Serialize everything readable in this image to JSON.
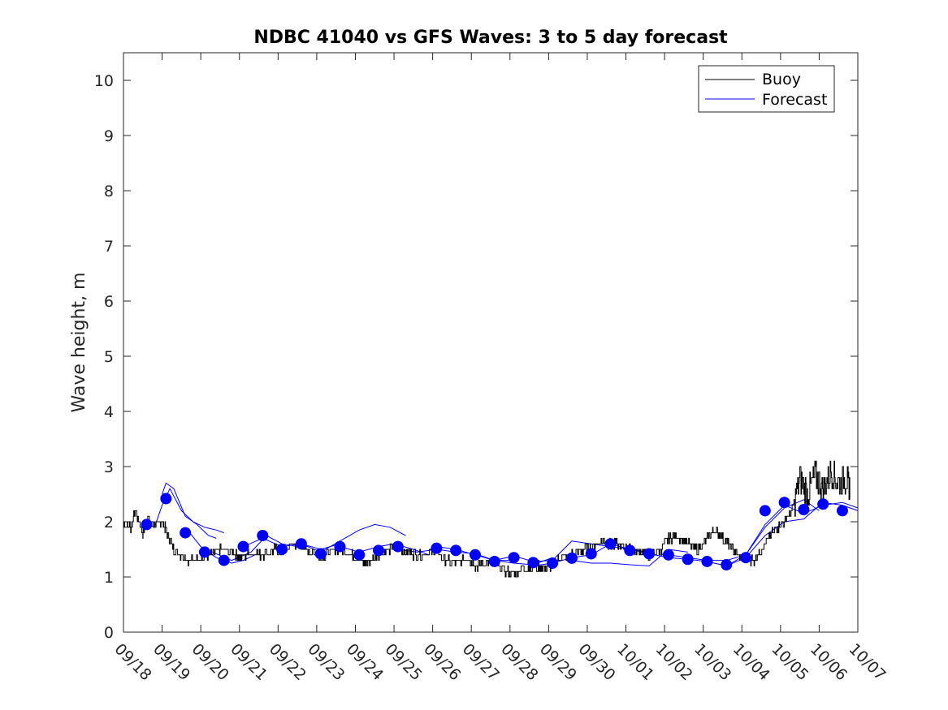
{
  "chart_data": {
    "type": "line",
    "title": "NDBC 41040 vs GFS Waves: 3 to 5 day forecast",
    "xlabel": "",
    "ylabel": "Wave height, m",
    "ylim": [
      0,
      10.5
    ],
    "xlim": [
      0,
      19
    ],
    "grid": false,
    "legend_position": "top-right",
    "yticks": [
      0,
      1,
      2,
      3,
      4,
      5,
      6,
      7,
      8,
      9,
      10
    ],
    "xtick_labels": [
      "09/18",
      "09/19",
      "09/20",
      "09/21",
      "09/22",
      "09/23",
      "09/24",
      "09/25",
      "09/26",
      "09/27",
      "09/28",
      "09/29",
      "09/30",
      "10/01",
      "10/02",
      "10/03",
      "10/04",
      "10/05",
      "10/06",
      "10/07"
    ],
    "legend": [
      "Buoy",
      "Forecast"
    ],
    "colors": {
      "buoy": "#000000",
      "forecast": "#0000ff",
      "axis": "#262626"
    },
    "buoy": {
      "name": "Buoy",
      "x": [
        0,
        0.2,
        0.3,
        0.5,
        0.6,
        0.8,
        1.0,
        1.1,
        1.3,
        1.5,
        1.7,
        2.0,
        2.3,
        2.5,
        2.8,
        3.0,
        3.3,
        3.6,
        3.9,
        4.1,
        4.4,
        4.7,
        4.9,
        5.1,
        5.3,
        5.6,
        5.9,
        6.1,
        6.3,
        6.6,
        6.9,
        7.1,
        7.3,
        7.6,
        7.9,
        8.1,
        8.3,
        8.6,
        8.9,
        9.1,
        9.3,
        9.6,
        9.9,
        10.1,
        10.3,
        10.6,
        10.9,
        11.1,
        11.3,
        11.6,
        11.9,
        12.1,
        12.4,
        12.6,
        12.9,
        13.1,
        13.3,
        13.6,
        13.9,
        14.1,
        14.3,
        14.6,
        14.9,
        15.1,
        15.3,
        15.5,
        15.7,
        15.9,
        16.1,
        16.3,
        16.5,
        16.7,
        16.9,
        17.1,
        17.3,
        17.5,
        17.7,
        17.9,
        18.1,
        18.3,
        18.5,
        18.7,
        18.8
      ],
      "y": [
        1.95,
        1.9,
        2.2,
        1.8,
        2.05,
        1.95,
        2.0,
        1.85,
        1.5,
        1.4,
        1.3,
        1.35,
        1.4,
        1.5,
        1.45,
        1.35,
        1.45,
        1.4,
        1.5,
        1.45,
        1.6,
        1.5,
        1.45,
        1.35,
        1.45,
        1.5,
        1.4,
        1.3,
        1.25,
        1.4,
        1.5,
        1.55,
        1.45,
        1.4,
        1.45,
        1.5,
        1.3,
        1.25,
        1.35,
        1.2,
        1.25,
        1.2,
        1.1,
        1.05,
        1.15,
        1.2,
        1.15,
        1.2,
        1.35,
        1.4,
        1.5,
        1.55,
        1.65,
        1.6,
        1.55,
        1.5,
        1.45,
        1.4,
        1.5,
        1.7,
        1.75,
        1.6,
        1.5,
        1.7,
        1.85,
        1.7,
        1.55,
        1.4,
        1.35,
        1.3,
        1.5,
        1.7,
        1.9,
        2.0,
        2.2,
        2.8,
        2.5,
        2.85,
        2.6,
        2.9,
        2.7,
        2.8,
        2.6
      ]
    },
    "forecast_points": {
      "x": [
        0.6,
        1.1,
        1.6,
        2.1,
        2.6,
        3.1,
        3.6,
        4.1,
        4.6,
        5.1,
        5.6,
        6.1,
        6.6,
        7.1,
        8.1,
        8.6,
        9.1,
        9.6,
        10.1,
        10.6,
        11.1,
        11.6,
        12.1,
        12.6,
        13.1,
        13.6,
        14.1,
        14.6,
        15.1,
        15.6,
        16.1,
        16.6,
        17.1,
        17.6,
        18.1,
        18.6
      ],
      "y": [
        1.95,
        2.42,
        1.8,
        1.45,
        1.3,
        1.55,
        1.75,
        1.5,
        1.6,
        1.42,
        1.55,
        1.4,
        1.48,
        1.55,
        1.52,
        1.48,
        1.4,
        1.28,
        1.35,
        1.26,
        1.25,
        1.34,
        1.42,
        1.6,
        1.48,
        1.42,
        1.4,
        1.32,
        1.28,
        1.22,
        1.35,
        2.2,
        2.35,
        2.22,
        2.32,
        2.2
      ]
    },
    "forecast_lines": [
      {
        "x": [
          0.5,
          0.8,
          1.0,
          1.2,
          1.5,
          1.8,
          2.1,
          2.4,
          2.6
        ],
        "y": [
          2.0,
          1.9,
          2.3,
          2.6,
          2.2,
          2.0,
          1.9,
          1.85,
          1.8
        ]
      },
      {
        "x": [
          1.0,
          1.1,
          1.3,
          1.6,
          1.9,
          2.2,
          2.4
        ],
        "y": [
          2.5,
          2.7,
          2.6,
          2.1,
          1.95,
          1.75,
          1.7
        ]
      },
      {
        "x": [
          1.6,
          2.0,
          2.4,
          2.8,
          3.1,
          3.4
        ],
        "y": [
          1.9,
          1.55,
          1.35,
          1.25,
          1.3,
          1.4
        ]
      },
      {
        "x": [
          2.3,
          2.8,
          3.3,
          3.7,
          4.1,
          4.5
        ],
        "y": [
          1.45,
          1.3,
          1.45,
          1.75,
          1.6,
          1.55
        ]
      },
      {
        "x": [
          3.1,
          3.6,
          4.1,
          4.6,
          5.1,
          5.6
        ],
        "y": [
          1.55,
          1.7,
          1.55,
          1.6,
          1.5,
          1.6
        ]
      },
      {
        "x": [
          4.6,
          5.1,
          5.6,
          6.1,
          6.5,
          6.9,
          7.3
        ],
        "y": [
          1.6,
          1.45,
          1.65,
          1.85,
          1.95,
          1.9,
          1.75
        ]
      },
      {
        "x": [
          5.6,
          6.1,
          6.6,
          7.0,
          7.5,
          7.9
        ],
        "y": [
          1.55,
          1.45,
          1.55,
          1.6,
          1.5,
          1.4
        ]
      },
      {
        "x": [
          7.1,
          7.6,
          8.1,
          8.6,
          9.1,
          9.6,
          10.1
        ],
        "y": [
          1.5,
          1.45,
          1.5,
          1.45,
          1.42,
          1.3,
          1.3
        ]
      },
      {
        "x": [
          8.1,
          8.6,
          9.1,
          9.6,
          10.1,
          10.6,
          11.1
        ],
        "y": [
          1.55,
          1.5,
          1.4,
          1.3,
          1.25,
          1.22,
          1.35
        ]
      },
      {
        "x": [
          9.6,
          10.1,
          10.6,
          11.1,
          11.6,
          12.1,
          12.6,
          13.1
        ],
        "y": [
          1.3,
          1.38,
          1.28,
          1.3,
          1.65,
          1.6,
          1.55,
          1.5
        ]
      },
      {
        "x": [
          10.6,
          11.1,
          11.6,
          12.1,
          12.6,
          13.1,
          13.6
        ],
        "y": [
          1.2,
          1.25,
          1.35,
          1.4,
          1.6,
          1.5,
          1.45
        ]
      },
      {
        "x": [
          11.6,
          12.1,
          12.6,
          13.1,
          13.6,
          14.1,
          14.6
        ],
        "y": [
          1.3,
          1.25,
          1.25,
          1.22,
          1.2,
          1.5,
          1.45
        ]
      },
      {
        "x": [
          13.1,
          13.6,
          14.1,
          14.6,
          15.1,
          15.6,
          16.1
        ],
        "y": [
          1.5,
          1.42,
          1.35,
          1.32,
          1.28,
          1.2,
          1.35
        ]
      },
      {
        "x": [
          14.1,
          14.6,
          15.1,
          15.6,
          16.1,
          16.6,
          17.1,
          17.6,
          18.0
        ],
        "y": [
          1.4,
          1.35,
          1.3,
          1.3,
          1.4,
          1.9,
          2.25,
          2.4,
          2.2
        ]
      },
      {
        "x": [
          15.6,
          16.1,
          16.6,
          17.1,
          17.6,
          18.1,
          18.6,
          19.0
        ],
        "y": [
          1.2,
          1.4,
          1.95,
          2.3,
          2.15,
          2.3,
          2.35,
          2.25
        ]
      },
      {
        "x": [
          16.1,
          16.6,
          17.1,
          17.6,
          18.1,
          18.6,
          19.0
        ],
        "y": [
          1.35,
          1.75,
          2.0,
          2.05,
          2.35,
          2.3,
          2.2
        ]
      }
    ]
  }
}
